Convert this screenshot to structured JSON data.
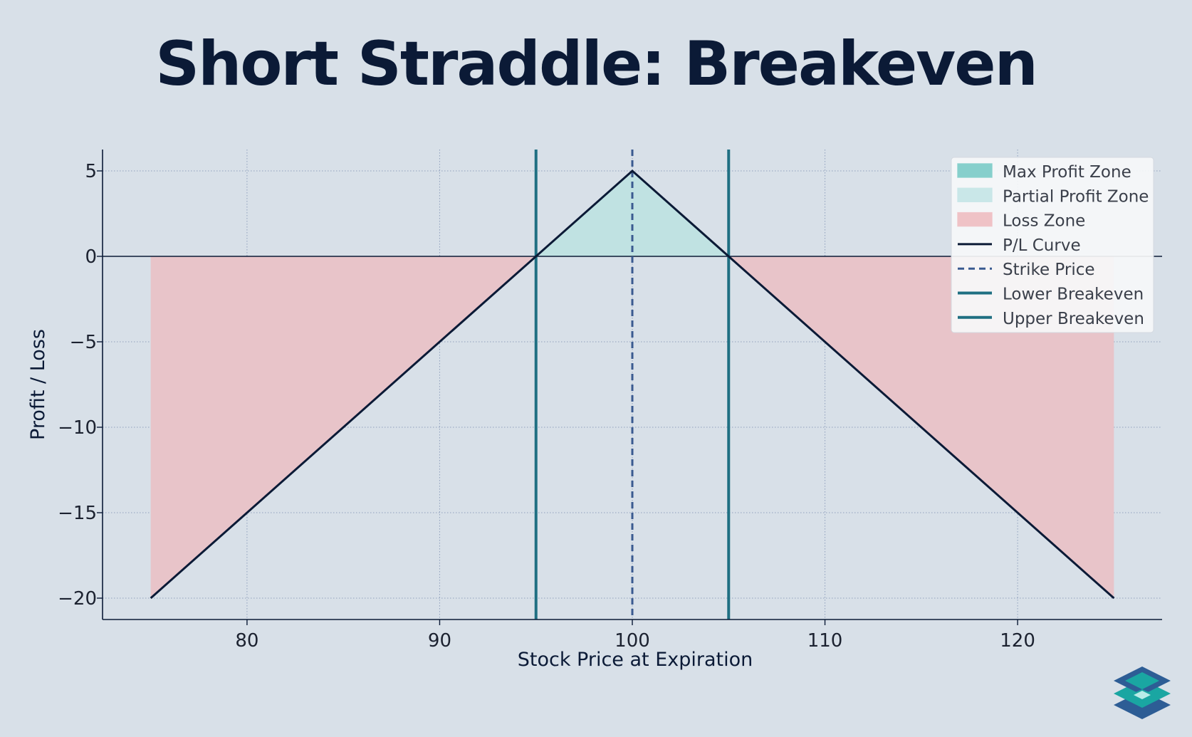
{
  "title": "Short Straddle: Breakeven",
  "colors": {
    "background": "#d8e0e8",
    "title": "#0b1a36",
    "axis": "#0b1a36",
    "grid": "#8f9fbc",
    "pl_curve": "#0b1a36",
    "strike": "#3a5a90",
    "breakeven": "#1f6f82",
    "max_profit_fill": "#86cfcc",
    "partial_profit_fill": "#c0e2e2",
    "loss_fill": "#e8c4c9",
    "legend_bg": "#f6f7f9"
  },
  "chart_data": {
    "type": "line",
    "xlabel": "Stock Price at Expiration",
    "ylabel": "Profit / Loss",
    "xlim": [
      72.5,
      127.5
    ],
    "ylim": [
      -21.25,
      6.25
    ],
    "xticks": [
      80,
      90,
      100,
      110,
      120
    ],
    "yticks": [
      5,
      0,
      -5,
      -10,
      -15,
      -20
    ],
    "xtick_labels": [
      "80",
      "90",
      "100",
      "110",
      "120"
    ],
    "ytick_labels": [
      "5",
      "0",
      "−5",
      "−10",
      "−15",
      "−20"
    ],
    "grid": true,
    "legend_position": "top-right",
    "series": [
      {
        "name": "P/L Curve",
        "x": [
          75,
          95,
          100,
          105,
          125
        ],
        "y": [
          -20,
          0,
          5,
          0,
          -20
        ]
      }
    ],
    "strike_price": 100,
    "lower_breakeven": 95,
    "upper_breakeven": 105,
    "legend": [
      {
        "label": "Max Profit Zone",
        "kind": "patch",
        "color": "#86cfcc"
      },
      {
        "label": "Partial Profit Zone",
        "kind": "patch",
        "color": "#c9e7e8"
      },
      {
        "label": "Loss Zone",
        "kind": "patch",
        "color": "#efc2c6"
      },
      {
        "label": "P/L Curve",
        "kind": "line",
        "color": "#0b1a36"
      },
      {
        "label": "Strike Price",
        "kind": "dashed",
        "color": "#3a5a90"
      },
      {
        "label": "Lower Breakeven",
        "kind": "line",
        "color": "#1f6f82"
      },
      {
        "label": "Upper Breakeven",
        "kind": "line",
        "color": "#1f6f82"
      }
    ]
  }
}
